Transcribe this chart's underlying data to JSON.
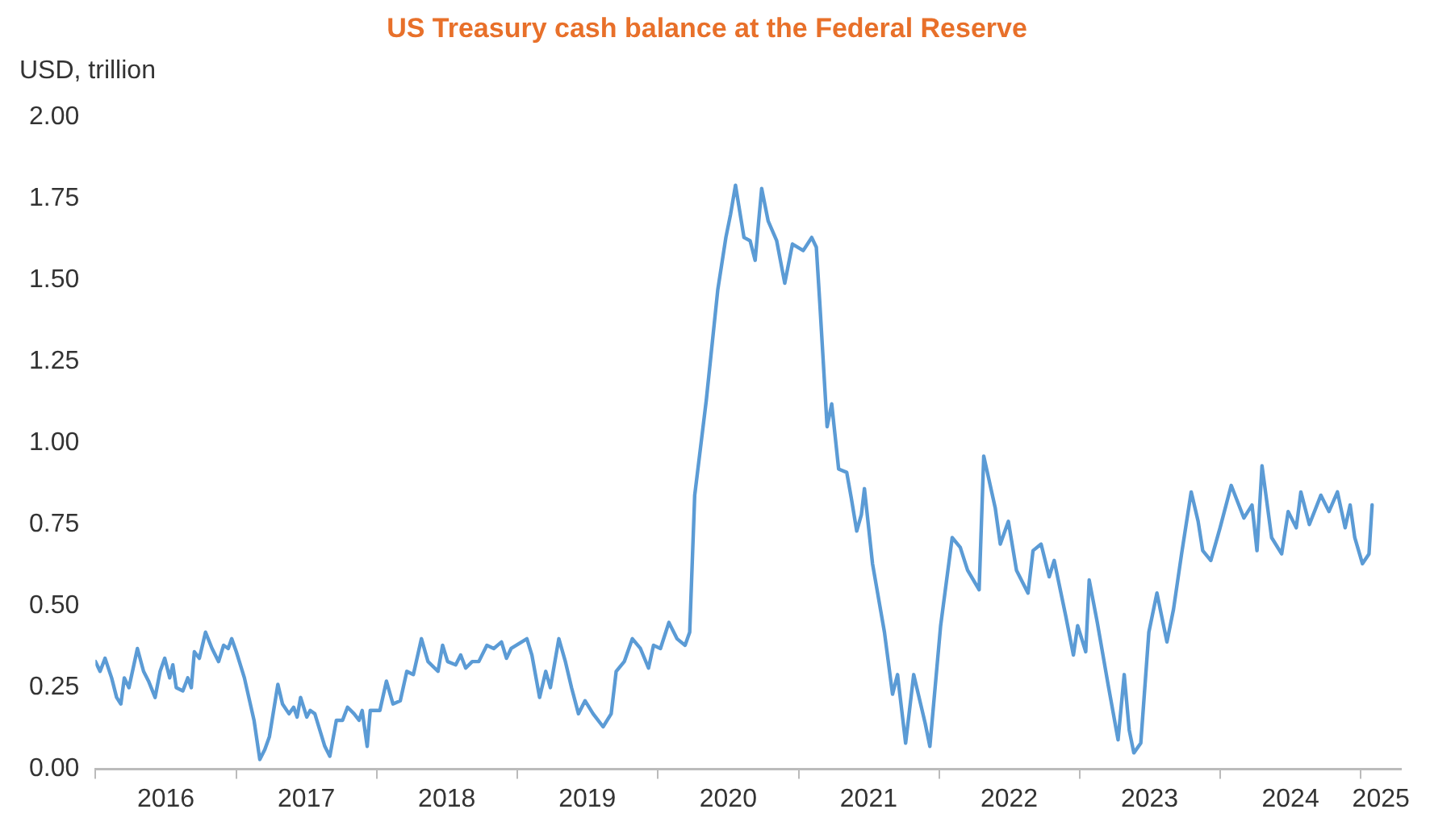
{
  "chart_data": {
    "type": "line",
    "title": "US Treasury cash balance at the Federal Reserve",
    "ylabel": "USD, trillion",
    "x": [
      "2016-01-01",
      "2016-01-13",
      "2016-01-26",
      "2016-02-12",
      "2016-02-25",
      "2016-03-07",
      "2016-03-16",
      "2016-03-28",
      "2016-04-19",
      "2016-05-05",
      "2016-05-18",
      "2016-06-04",
      "2016-06-17",
      "2016-06-29",
      "2016-07-12",
      "2016-07-20",
      "2016-07-29",
      "2016-08-15",
      "2016-08-28",
      "2016-09-06",
      "2016-09-14",
      "2016-09-27",
      "2016-10-13",
      "2016-10-30",
      "2016-11-16",
      "2016-11-29",
      "2016-12-11",
      "2016-12-20",
      "2017-01-01",
      "2017-01-22",
      "2017-02-16",
      "2017-03-03",
      "2017-03-16",
      "2017-03-28",
      "2017-04-19",
      "2017-05-01",
      "2017-05-18",
      "2017-05-30",
      "2017-06-08",
      "2017-06-17",
      "2017-07-03",
      "2017-07-12",
      "2017-07-24",
      "2017-08-19",
      "2017-09-01",
      "2017-09-18",
      "2017-10-04",
      "2017-10-17",
      "2017-11-03",
      "2017-11-16",
      "2017-11-24",
      "2017-12-07",
      "2017-12-15",
      "2018-01-09",
      "2018-01-26",
      "2018-02-12",
      "2018-03-03",
      "2018-03-20",
      "2018-04-06",
      "2018-04-27",
      "2018-05-14",
      "2018-06-09",
      "2018-06-21",
      "2018-07-04",
      "2018-07-25",
      "2018-08-07",
      "2018-08-20",
      "2018-09-06",
      "2018-09-23",
      "2018-10-14",
      "2018-11-01",
      "2018-11-21",
      "2018-12-04",
      "2018-12-16",
      "2019-01-26",
      "2019-02-08",
      "2019-02-28",
      "2019-03-16",
      "2019-03-28",
      "2019-04-19",
      "2019-05-06",
      "2019-05-22",
      "2019-06-09",
      "2019-06-26",
      "2019-07-17",
      "2019-08-12",
      "2019-09-02",
      "2019-09-15",
      "2019-10-06",
      "2019-10-27",
      "2019-11-17",
      "2019-12-08",
      "2019-12-21",
      "2020-01-08",
      "2020-01-30",
      "2020-02-20",
      "2020-03-12",
      "2020-03-24",
      "2020-04-06",
      "2020-05-06",
      "2020-06-05",
      "2020-06-26",
      "2020-07-08",
      "2020-07-21",
      "2020-08-12",
      "2020-08-28",
      "2020-09-10",
      "2020-09-27",
      "2020-10-14",
      "2020-11-05",
      "2020-11-26",
      "2020-12-16",
      "2021-01-13",
      "2021-02-04",
      "2021-02-16",
      "2021-02-25",
      "2021-03-16",
      "2021-03-28",
      "2021-04-15",
      "2021-05-06",
      "2021-05-18",
      "2021-06-01",
      "2021-06-13",
      "2021-06-21",
      "2021-07-12",
      "2021-08-12",
      "2021-09-02",
      "2021-09-15",
      "2021-10-06",
      "2021-10-27",
      "2021-11-26",
      "2021-12-08",
      "2022-01-05",
      "2022-02-04",
      "2022-02-25",
      "2022-03-16",
      "2022-04-15",
      "2022-04-27",
      "2022-05-27",
      "2022-06-09",
      "2022-06-30",
      "2022-07-21",
      "2022-08-20",
      "2022-09-02",
      "2022-09-23",
      "2022-10-14",
      "2022-10-27",
      "2022-11-26",
      "2022-12-16",
      "2022-12-27",
      "2023-01-17",
      "2023-01-26",
      "2023-02-16",
      "2023-03-16",
      "2023-04-11",
      "2023-04-27",
      "2023-05-10",
      "2023-05-22",
      "2023-06-09",
      "2023-06-30",
      "2023-07-21",
      "2023-08-16",
      "2023-09-02",
      "2023-09-23",
      "2023-10-18",
      "2023-11-05",
      "2023-11-17",
      "2023-12-08",
      "2024-01-01",
      "2024-01-30",
      "2024-03-03",
      "2024-03-24",
      "2024-04-06",
      "2024-04-19",
      "2024-05-14",
      "2024-06-09",
      "2024-06-26",
      "2024-07-17",
      "2024-07-29",
      "2024-08-20",
      "2024-09-19",
      "2024-10-10",
      "2024-11-01",
      "2024-11-21",
      "2024-12-04",
      "2024-12-16",
      "2025-01-05",
      "2025-01-22",
      "2025-01-30"
    ],
    "series": [
      {
        "color": "#5b9bd5",
        "values": [
          0.33,
          0.3,
          0.34,
          0.28,
          0.22,
          0.2,
          0.28,
          0.25,
          0.37,
          0.3,
          0.27,
          0.22,
          0.3,
          0.34,
          0.28,
          0.32,
          0.25,
          0.24,
          0.28,
          0.25,
          0.36,
          0.34,
          0.42,
          0.37,
          0.33,
          0.38,
          0.37,
          0.4,
          0.36,
          0.28,
          0.15,
          0.03,
          0.06,
          0.1,
          0.26,
          0.2,
          0.17,
          0.19,
          0.16,
          0.22,
          0.16,
          0.18,
          0.17,
          0.07,
          0.04,
          0.15,
          0.15,
          0.19,
          0.17,
          0.15,
          0.18,
          0.07,
          0.18,
          0.18,
          0.27,
          0.2,
          0.21,
          0.3,
          0.29,
          0.4,
          0.33,
          0.3,
          0.38,
          0.33,
          0.32,
          0.35,
          0.31,
          0.33,
          0.33,
          0.38,
          0.37,
          0.39,
          0.34,
          0.37,
          0.4,
          0.35,
          0.22,
          0.3,
          0.25,
          0.4,
          0.33,
          0.25,
          0.17,
          0.21,
          0.17,
          0.13,
          0.17,
          0.3,
          0.33,
          0.4,
          0.37,
          0.31,
          0.38,
          0.37,
          0.45,
          0.4,
          0.38,
          0.42,
          0.84,
          1.13,
          1.47,
          1.63,
          1.7,
          1.79,
          1.63,
          1.62,
          1.56,
          1.78,
          1.68,
          1.62,
          1.49,
          1.61,
          1.59,
          1.63,
          1.6,
          1.43,
          1.05,
          1.12,
          0.92,
          0.91,
          0.83,
          0.73,
          0.78,
          0.86,
          0.63,
          0.42,
          0.23,
          0.29,
          0.08,
          0.29,
          0.14,
          0.07,
          0.44,
          0.71,
          0.68,
          0.61,
          0.55,
          0.96,
          0.8,
          0.69,
          0.76,
          0.61,
          0.54,
          0.67,
          0.69,
          0.59,
          0.64,
          0.47,
          0.35,
          0.44,
          0.36,
          0.58,
          0.45,
          0.26,
          0.09,
          0.29,
          0.12,
          0.05,
          0.08,
          0.42,
          0.54,
          0.39,
          0.49,
          0.66,
          0.85,
          0.76,
          0.67,
          0.64,
          0.74,
          0.87,
          0.77,
          0.81,
          0.67,
          0.93,
          0.71,
          0.66,
          0.79,
          0.74,
          0.85,
          0.75,
          0.84,
          0.79,
          0.85,
          0.74,
          0.81,
          0.71,
          0.63,
          0.66,
          0.81
        ]
      }
    ],
    "xlim": [
      "2016-01-01",
      "2025-04-15"
    ],
    "xticks": [
      {
        "value": "2016-01-01",
        "label": null
      },
      {
        "value": "2016-07-02",
        "label": "2016"
      },
      {
        "value": "2017-01-01",
        "label": null
      },
      {
        "value": "2017-07-02",
        "label": "2017"
      },
      {
        "value": "2018-01-01",
        "label": null
      },
      {
        "value": "2018-07-02",
        "label": "2018"
      },
      {
        "value": "2019-01-01",
        "label": null
      },
      {
        "value": "2019-07-02",
        "label": "2019"
      },
      {
        "value": "2020-01-01",
        "label": null
      },
      {
        "value": "2020-07-02",
        "label": "2020"
      },
      {
        "value": "2021-01-01",
        "label": null
      },
      {
        "value": "2021-07-02",
        "label": "2021"
      },
      {
        "value": "2022-01-01",
        "label": null
      },
      {
        "value": "2022-07-02",
        "label": "2022"
      },
      {
        "value": "2023-01-01",
        "label": null
      },
      {
        "value": "2023-07-02",
        "label": "2023"
      },
      {
        "value": "2024-01-01",
        "label": null
      },
      {
        "value": "2024-07-02",
        "label": "2024"
      },
      {
        "value": "2025-01-01",
        "label": null
      },
      {
        "value": "2025-02-22",
        "label": "2025"
      }
    ],
    "ylim": [
      0,
      2
    ],
    "yticks": [
      {
        "value": 0,
        "label": "0.00"
      },
      {
        "value": 0.25,
        "label": "0.25"
      },
      {
        "value": 0.5,
        "label": "0.50"
      },
      {
        "value": 0.75,
        "label": "0.75"
      },
      {
        "value": 1,
        "label": "1.00"
      },
      {
        "value": 1.25,
        "label": "1.25"
      },
      {
        "value": 1.5,
        "label": "1.50"
      },
      {
        "value": 1.75,
        "label": "1.75"
      },
      {
        "value": 2,
        "label": "2.00"
      }
    ],
    "grid": false,
    "legend": false,
    "marker": "none",
    "line_style": "solid"
  }
}
